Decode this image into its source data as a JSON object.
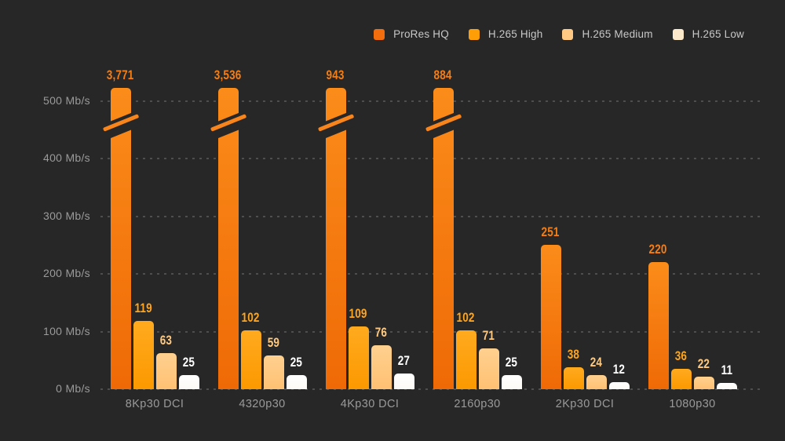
{
  "chart_data": {
    "type": "bar",
    "title": "",
    "unit": "Mb/s",
    "legend_position": "top-right",
    "grid": "dashed-horizontal",
    "ylim": [
      0,
      500
    ],
    "y_tick_labels": [
      "0 Mb/s",
      "100 Mb/s",
      "200 Mb/s",
      "300 Mb/s",
      "400 Mb/s",
      "500 Mb/s"
    ],
    "y_tick_values": [
      0,
      100,
      200,
      300,
      400,
      500
    ],
    "axis_break_note": "ProRes HQ bars for the first four categories exceed the 500 Mb/s scale and are drawn clipped with diagonal break marks",
    "categories": [
      "8Kp30 DCI",
      "4320p30",
      "4Kp30 DCI",
      "2160p30",
      "2Kp30 DCI",
      "1080p30"
    ],
    "series": [
      {
        "name": "ProRes HQ",
        "values": [
          3771,
          3536,
          943,
          884,
          251,
          220
        ],
        "value_labels": [
          "3,771",
          "3,536",
          "943",
          "884",
          "251",
          "220"
        ],
        "bar_color_top": "#fb8c1a",
        "bar_color_bottom": "#ef6a06",
        "legend_color": "#f26d0d",
        "label_color": "#f57d12",
        "break_stripe_color": "#f8841c"
      },
      {
        "name": "H.265 High",
        "values": [
          119,
          102,
          109,
          102,
          38,
          36
        ],
        "value_labels": [
          "119",
          "102",
          "109",
          "102",
          "38",
          "36"
        ],
        "bar_color_top": "#ffaa1f",
        "bar_color_bottom": "#fc9900",
        "legend_color": "#ff9e06",
        "label_color": "#ffa51d"
      },
      {
        "name": "H.265 Medium",
        "values": [
          63,
          59,
          76,
          71,
          24,
          22
        ],
        "value_labels": [
          "63",
          "59",
          "76",
          "71",
          "24",
          "22"
        ],
        "bar_color_top": "#ffd08f",
        "bar_color_bottom": "#ffc173",
        "legend_color": "#ffc983",
        "label_color": "#ffc980"
      },
      {
        "name": "H.265 Low",
        "values": [
          25,
          25,
          27,
          25,
          12,
          11
        ],
        "value_labels": [
          "25",
          "25",
          "27",
          "25",
          "12",
          "11"
        ],
        "bar_color_top": "#ffffff",
        "bar_color_bottom": "#fdfaf5",
        "legend_color": "#fce8cb",
        "label_color": "#ffffff"
      }
    ],
    "colors": {
      "background": "#272727",
      "gridline": "#4e4e4e",
      "axis_text": "#9a9a9a",
      "legend_text": "#c8c8c8"
    }
  }
}
